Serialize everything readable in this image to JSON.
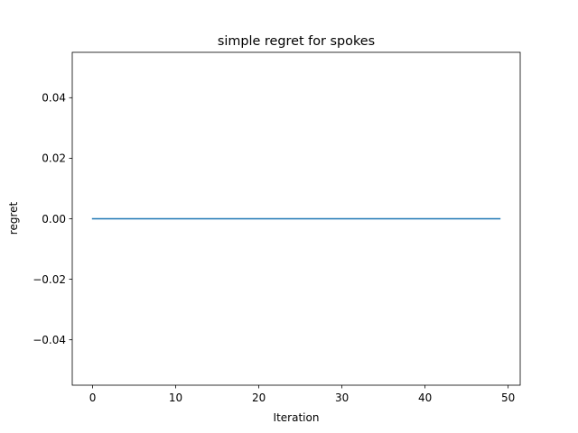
{
  "chart_data": {
    "type": "line",
    "title": "simple regret for spokes",
    "xlabel": "Iteration",
    "ylabel": "regret",
    "xlim": [
      -2.45,
      51.45
    ],
    "ylim": [
      -0.055,
      0.055
    ],
    "x_ticks": [
      0,
      10,
      20,
      30,
      40,
      50
    ],
    "x_tick_labels": [
      "0",
      "10",
      "20",
      "30",
      "40",
      "50"
    ],
    "y_ticks": [
      -0.04,
      -0.02,
      0.0,
      0.02,
      0.04
    ],
    "y_tick_labels": [
      "−0.04",
      "−0.02",
      "0.00",
      "0.02",
      "0.04"
    ],
    "grid": false,
    "series": [
      {
        "color": "#1f77b4",
        "x": [
          0,
          49
        ],
        "y": [
          0.0,
          0.0
        ]
      }
    ]
  }
}
